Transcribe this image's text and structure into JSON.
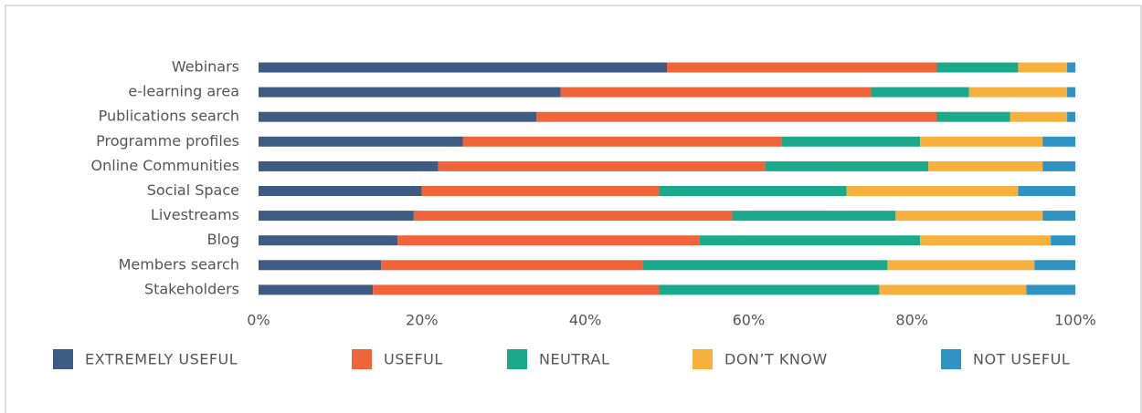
{
  "chart_data": {
    "type": "stacked-barh",
    "categories": [
      "Webinars",
      "e-learning area",
      "Publications search",
      "Programme profiles",
      "Online Communities",
      "Social Space",
      "Livestreams",
      "Blog",
      "Members search",
      "Stakeholders"
    ],
    "series": [
      {
        "name": "EXTREMELY USEFUL",
        "color": "#3e5b84",
        "values": [
          50,
          37,
          34,
          25,
          22,
          20,
          19,
          17,
          15,
          14
        ]
      },
      {
        "name": "USEFUL",
        "color": "#f0643a",
        "values": [
          33,
          38,
          49,
          39,
          40,
          29,
          39,
          37,
          32,
          35
        ]
      },
      {
        "name": "NEUTRAL",
        "color": "#1aaa8b",
        "values": [
          10,
          12,
          9,
          17,
          20,
          23,
          20,
          27,
          30,
          27
        ]
      },
      {
        "name": "DON’T KNOW",
        "color": "#f8b03d",
        "values": [
          6,
          12,
          7,
          15,
          14,
          21,
          18,
          16,
          18,
          18
        ]
      },
      {
        "name": "NOT USEFUL",
        "color": "#2e92c3",
        "values": [
          1,
          1,
          1,
          4,
          4,
          7,
          4,
          3,
          5,
          6
        ]
      }
    ],
    "xlim": [
      0,
      100
    ],
    "xticks": [
      {
        "value": 0,
        "label": "0%"
      },
      {
        "value": 20,
        "label": "20%"
      },
      {
        "value": 40,
        "label": "40%"
      },
      {
        "value": 60,
        "label": "60%"
      },
      {
        "value": 80,
        "label": "80%"
      },
      {
        "value": 100,
        "label": "100%"
      }
    ],
    "grid": false,
    "legend": "bottom"
  }
}
